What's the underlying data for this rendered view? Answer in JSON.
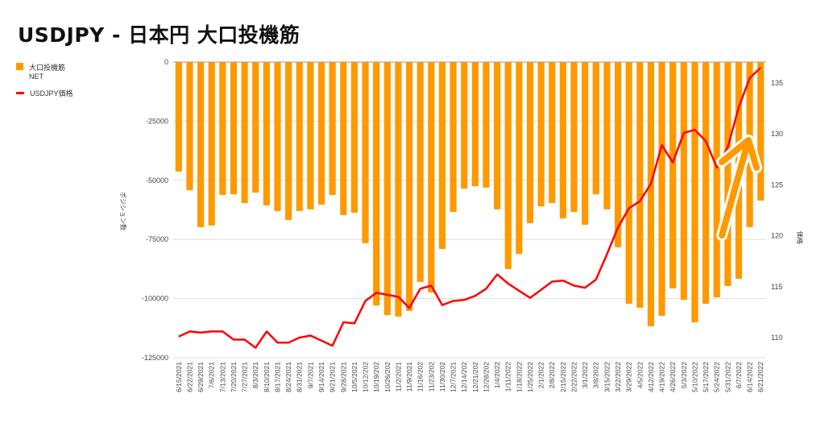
{
  "title": "USDJPY - 日本円 大口投機筋",
  "colors": {
    "bar": "#ff9900",
    "line": "#ff0000",
    "grid": "#dddddd"
  },
  "chart_data": {
    "type": "bar+line",
    "title": "USDJPY - 日本円 大口投機筋",
    "ylabel": "ポジション数",
    "y2label": "価格",
    "ylim": [
      -125000,
      0
    ],
    "y2lim": [
      110,
      135
    ],
    "yticks": [
      "0",
      "-25000",
      "-50000",
      "-75000",
      "-100000",
      "-125000"
    ],
    "y2ticks": [
      "110",
      "115",
      "120",
      "125",
      "130",
      "135"
    ],
    "legend_position": "top-left",
    "grid": true,
    "categories": [
      "6/15/2021",
      "6/22/2021",
      "6/29/2021",
      "7/6/2021",
      "7/13/2021",
      "7/20/2021",
      "7/27/2021",
      "8/3/2021",
      "8/10/2021",
      "8/17/2021",
      "8/24/2021",
      "8/31/2021",
      "9/7/2021",
      "9/14/2021",
      "9/21/2021",
      "9/28/2021",
      "10/5/2021",
      "10/12/202",
      "10/19/202",
      "10/26/202",
      "11/2/2021",
      "11/9/2021",
      "11/16/202",
      "11/23/202",
      "11/30/202",
      "12/7/2021",
      "12/14/202",
      "12/21/202",
      "12/28/202",
      "1/4/2022",
      "1/11/2022",
      "1/18/2022",
      "1/25/2022",
      "2/1/2022",
      "2/8/2022",
      "2/15/2022",
      "2/22/2022",
      "3/1/2022",
      "3/8/2022",
      "3/15/2022",
      "3/22/2022",
      "3/29/2022",
      "4/5/2022",
      "4/12/2022",
      "4/19/2022",
      "4/26/2022",
      "5/3/2022",
      "5/10/2022",
      "5/17/2022",
      "5/24/2022",
      "5/31/2022",
      "6/7/2022",
      "6/14/2022",
      "6/21/2022"
    ],
    "series": [
      {
        "name": "大口投機筋 NET",
        "legend_line1": "大口投機筋",
        "legend_line2": "NET",
        "type": "bar",
        "axis": "left",
        "values": [
          -46300,
          -54200,
          -69800,
          -69100,
          -56200,
          -55900,
          -59600,
          -55200,
          -60600,
          -63000,
          -66800,
          -63000,
          -62300,
          -60300,
          -56200,
          -64700,
          -63700,
          -76600,
          -102900,
          -107000,
          -107600,
          -105200,
          -93000,
          -97400,
          -79000,
          -63400,
          -53500,
          -52500,
          -53100,
          -62300,
          -87500,
          -81100,
          -68100,
          -61000,
          -59600,
          -66100,
          -63400,
          -68800,
          -55900,
          -62300,
          -78300,
          -102200,
          -103900,
          -111700,
          -107300,
          -95700,
          -100500,
          -110000,
          -102200,
          -99500,
          -94700,
          -91600,
          -69800,
          -58600
        ]
      },
      {
        "name": "USDJPY価格",
        "type": "line",
        "axis": "right",
        "values": [
          110.1,
          110.6,
          110.5,
          110.6,
          110.6,
          109.8,
          109.8,
          109.0,
          110.6,
          109.5,
          109.5,
          110.0,
          110.2,
          109.7,
          109.2,
          111.5,
          111.4,
          113.6,
          114.4,
          114.2,
          114.0,
          112.9,
          114.8,
          115.1,
          113.2,
          113.6,
          113.7,
          114.1,
          114.8,
          116.2,
          115.3,
          114.6,
          113.9,
          114.7,
          115.5,
          115.6,
          115.1,
          114.9,
          115.7,
          118.2,
          120.8,
          122.7,
          123.4,
          125.1,
          128.9,
          127.2,
          130.1,
          130.4,
          129.3,
          126.7,
          128.7,
          132.6,
          135.5,
          136.5
        ]
      }
    ]
  }
}
